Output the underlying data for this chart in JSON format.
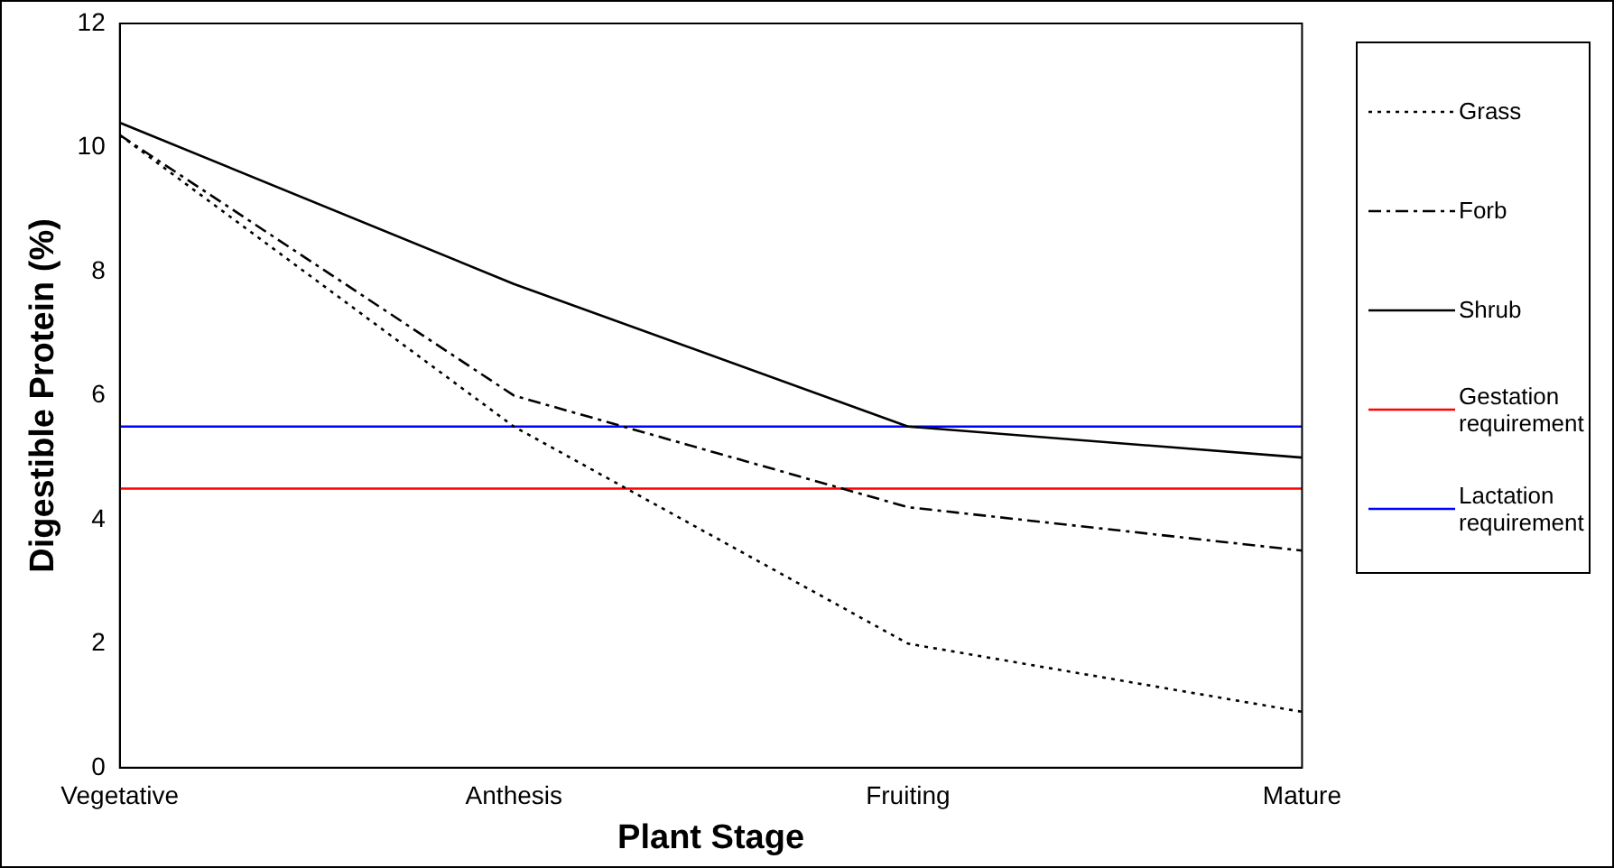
{
  "chart_data": {
    "type": "line",
    "xlabel": "Plant Stage",
    "ylabel": "Digestible Protein (%)",
    "categories": [
      "Vegetative",
      "Anthesis",
      "Fruiting",
      "Mature"
    ],
    "ylim": [
      0,
      12
    ],
    "yticks": [
      0,
      2,
      4,
      6,
      8,
      10,
      12
    ],
    "grid": false,
    "legend": "right",
    "marker": "none",
    "series": [
      {
        "name": "Grass",
        "color": "#000000",
        "line_style": "dotted",
        "values": [
          10.2,
          5.5,
          2.0,
          0.9
        ]
      },
      {
        "name": "Forb",
        "color": "#000000",
        "line_style": "dashed",
        "values": [
          10.2,
          6.0,
          4.2,
          3.5
        ]
      },
      {
        "name": "Shrub",
        "color": "#000000",
        "line_style": "solid",
        "values": [
          10.4,
          7.8,
          5.5,
          5.0
        ]
      },
      {
        "name": "Gestation requirement",
        "color": "#ff0000",
        "line_style": "solid",
        "values": [
          4.5,
          4.5,
          4.5,
          4.5
        ]
      },
      {
        "name": "Lactation requirement",
        "color": "#0000ff",
        "line_style": "solid",
        "values": [
          5.5,
          5.5,
          5.5,
          5.5
        ]
      }
    ]
  }
}
